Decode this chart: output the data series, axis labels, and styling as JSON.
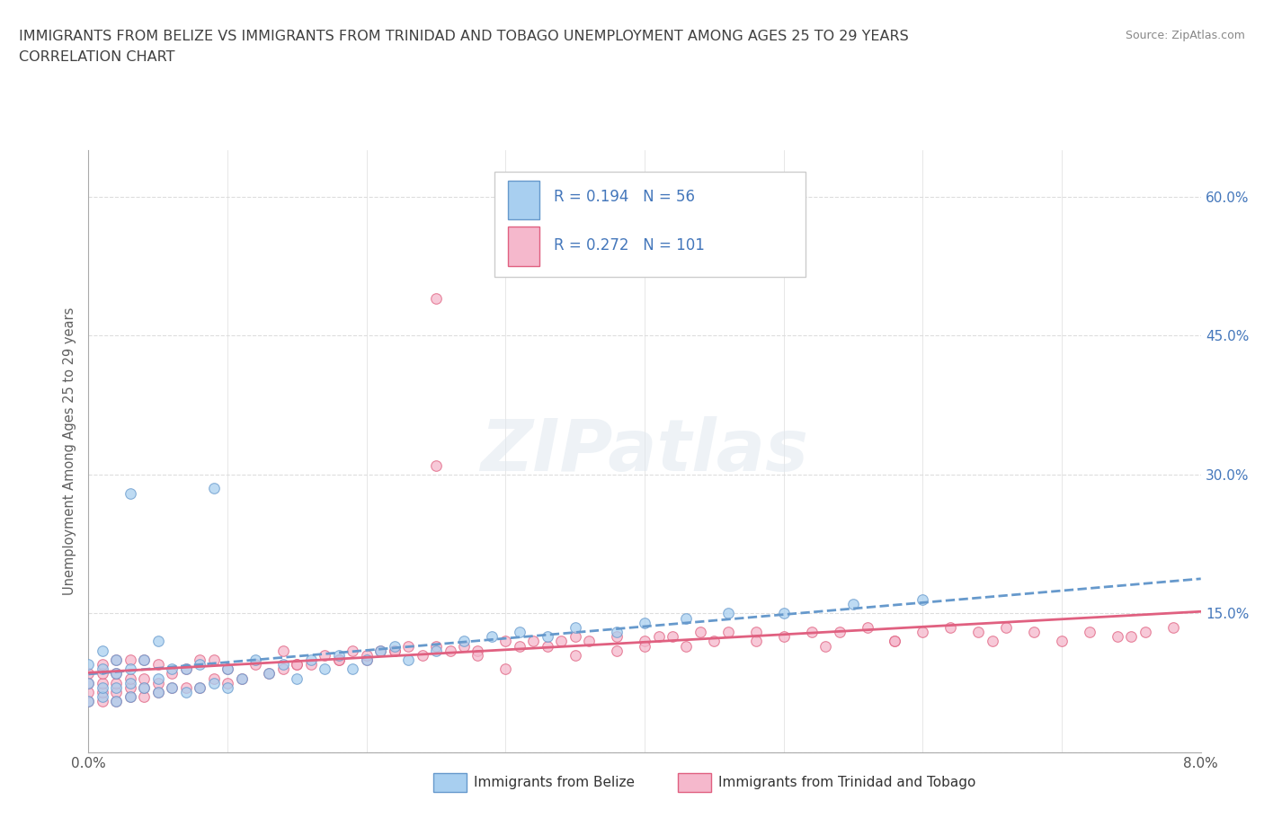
{
  "title_line1": "IMMIGRANTS FROM BELIZE VS IMMIGRANTS FROM TRINIDAD AND TOBAGO UNEMPLOYMENT AMONG AGES 25 TO 29 YEARS",
  "title_line2": "CORRELATION CHART",
  "source_text": "Source: ZipAtlas.com",
  "ylabel": "Unemployment Among Ages 25 to 29 years",
  "xlim": [
    0.0,
    0.08
  ],
  "ylim": [
    0.0,
    0.65
  ],
  "xtick_positions": [
    0.0,
    0.01,
    0.02,
    0.03,
    0.04,
    0.05,
    0.06,
    0.07,
    0.08
  ],
  "xtick_labels": [
    "0.0%",
    "",
    "",
    "",
    "",
    "",
    "",
    "",
    "8.0%"
  ],
  "ytick_positions": [
    0.0,
    0.15,
    0.3,
    0.45,
    0.6
  ],
  "ytick_labels_right": [
    "",
    "15.0%",
    "30.0%",
    "45.0%",
    "60.0%"
  ],
  "belize_fill_color": "#a8cff0",
  "belize_edge_color": "#6699cc",
  "trinidad_fill_color": "#f5b8cc",
  "trinidad_edge_color": "#e06080",
  "belize_line_color": "#6699cc",
  "trinidad_line_color": "#e06080",
  "legend_text_color": "#4477bb",
  "R_belize": 0.194,
  "N_belize": 56,
  "R_trinidad": 0.272,
  "N_trinidad": 101,
  "watermark_text": "ZIPatlas",
  "grid_color": "#dddddd",
  "title_color": "#404040",
  "source_color": "#888888",
  "ylabel_color": "#606060"
}
